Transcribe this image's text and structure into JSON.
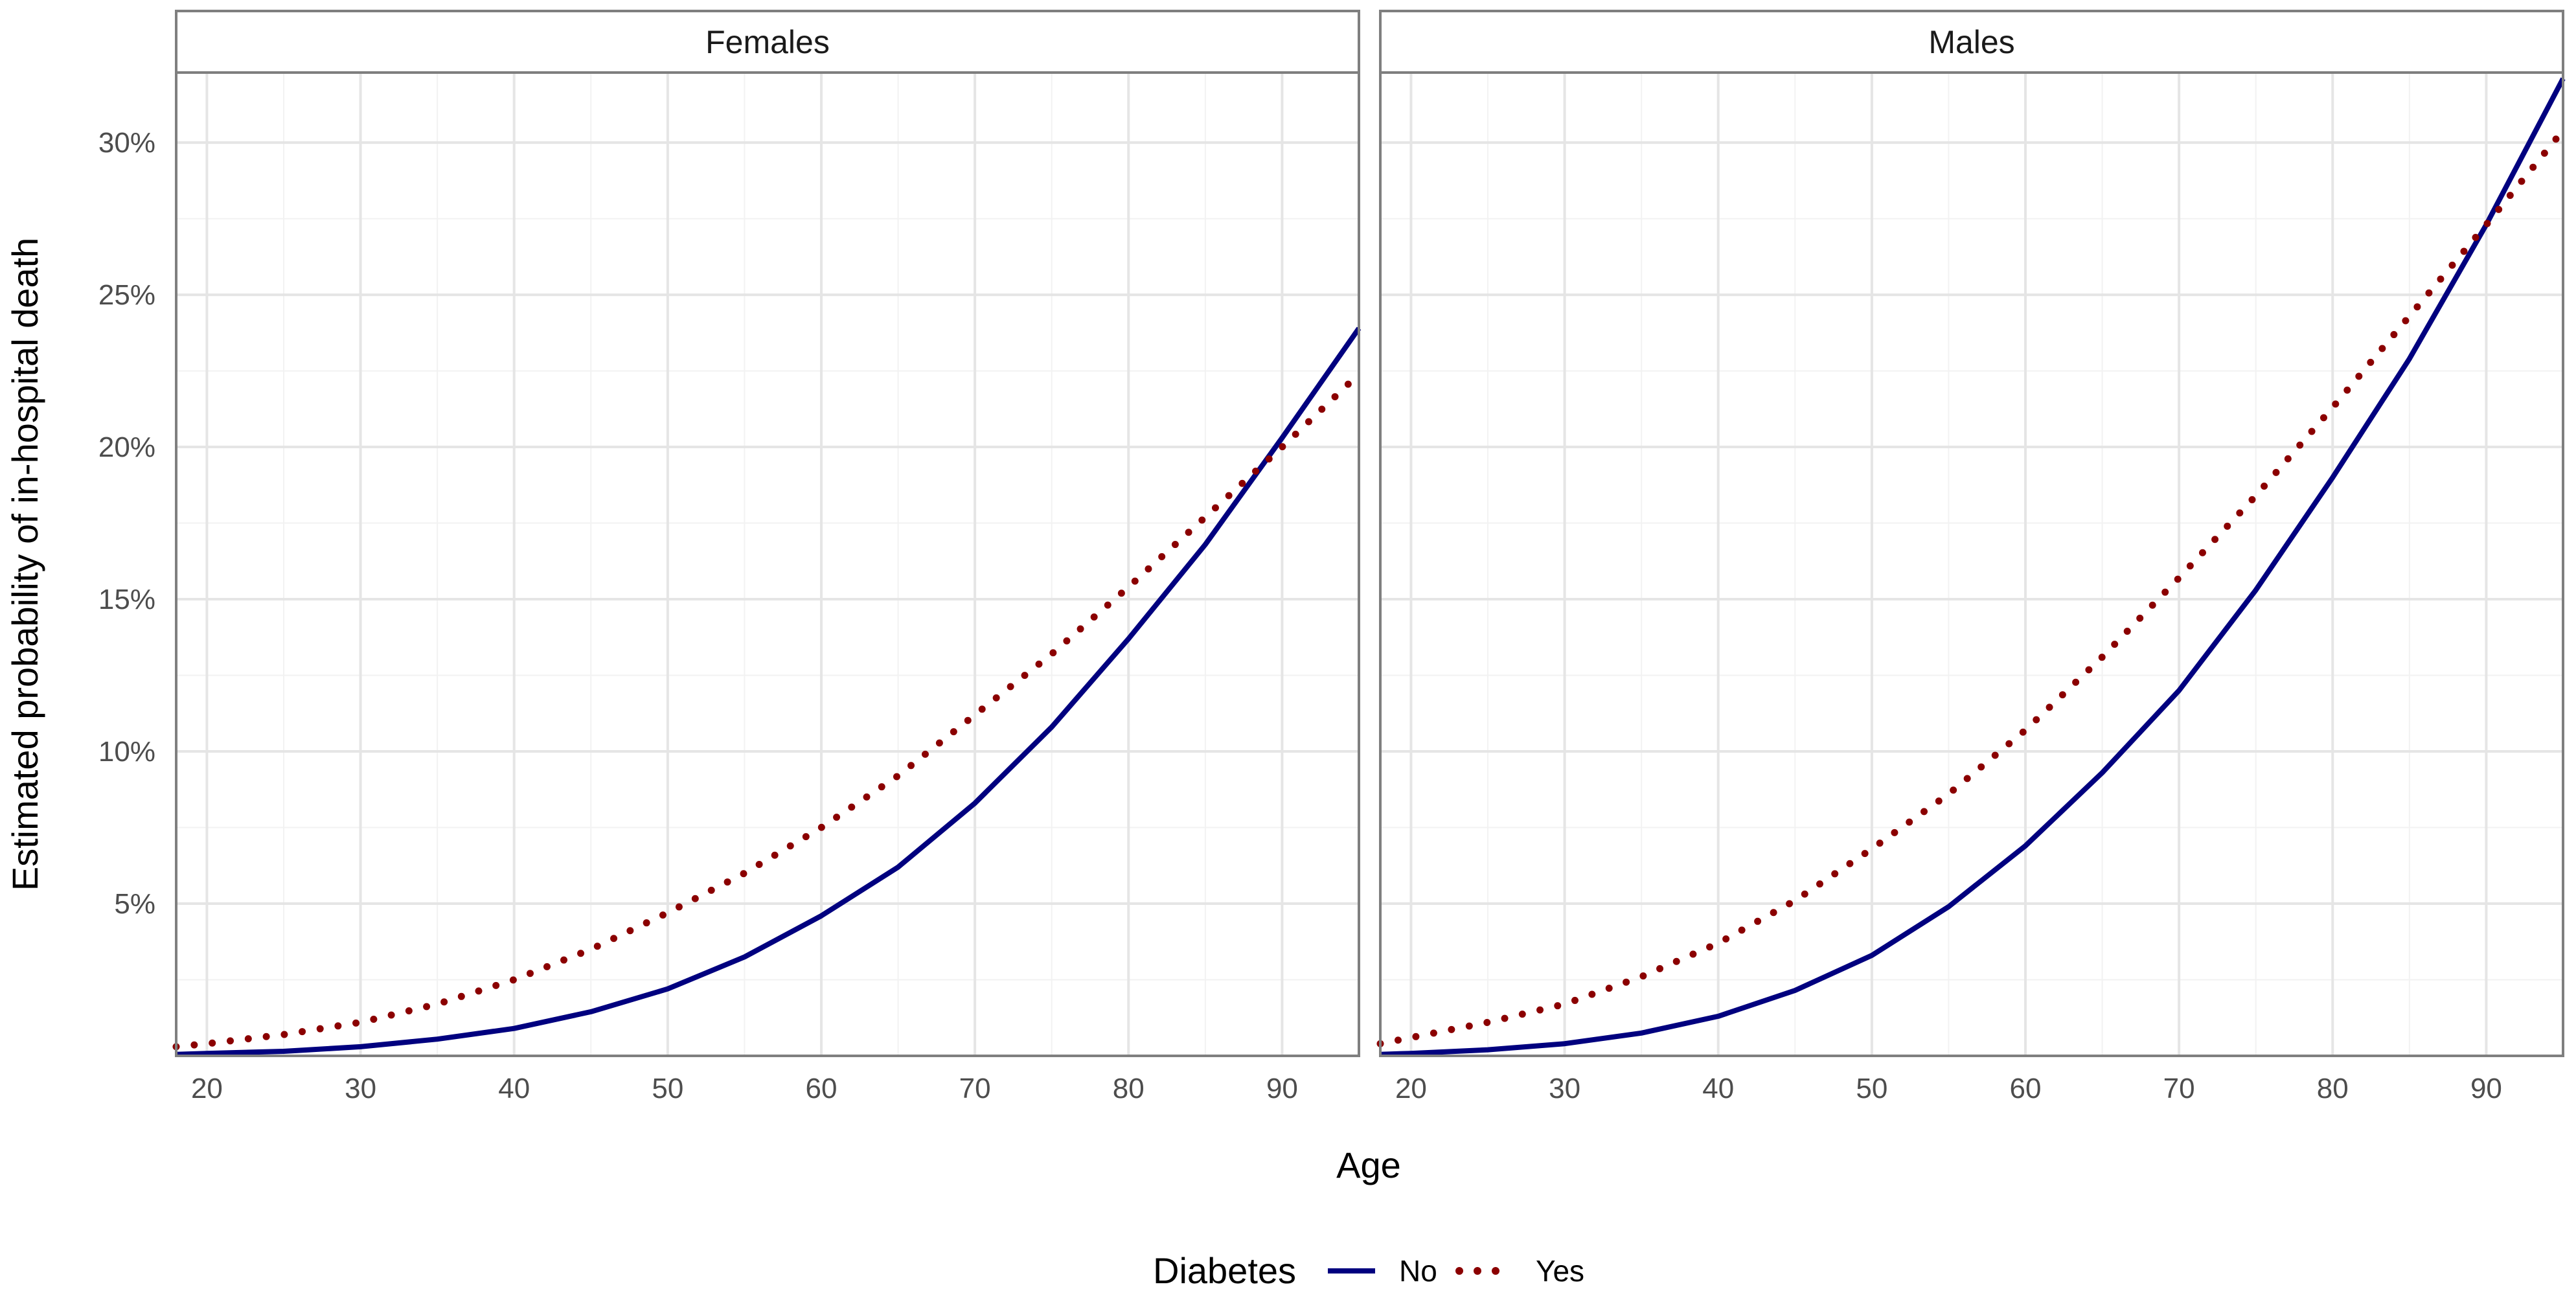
{
  "chart_data": {
    "type": "line",
    "xlabel": "Age",
    "ylabel": "Estimated probability of in-hospital death",
    "xlim": [
      18,
      95
    ],
    "ylim": [
      0,
      32.3
    ],
    "x_ticks": [
      20,
      30,
      40,
      50,
      60,
      70,
      80,
      90
    ],
    "x_tick_labels": [
      "20",
      "30",
      "40",
      "50",
      "60",
      "70",
      "80",
      "90"
    ],
    "y_ticks": [
      5,
      10,
      15,
      20,
      25,
      30
    ],
    "y_tick_labels": [
      "5%",
      "10%",
      "15%",
      "20%",
      "25%",
      "30%"
    ],
    "grid": true,
    "legend": {
      "title": "Diabetes",
      "position": "bottom",
      "entries": [
        {
          "label": "No",
          "color": "#00007F",
          "style": "solid"
        },
        {
          "label": "Yes",
          "color": "#8B0000",
          "style": "dotted"
        }
      ]
    },
    "panels": [
      {
        "title": "Females",
        "x": [
          18,
          20,
          25,
          30,
          35,
          40,
          45,
          50,
          55,
          60,
          65,
          70,
          75,
          80,
          85,
          90,
          95
        ],
        "series": [
          {
            "name": "No",
            "values": [
              0.05,
              0.08,
              0.15,
              0.3,
              0.55,
              0.9,
              1.45,
              2.2,
              3.25,
              4.6,
              6.2,
              8.3,
              10.8,
              13.7,
              16.8,
              20.3,
              23.9
            ]
          },
          {
            "name": "Yes",
            "values": [
              0.3,
              0.4,
              0.7,
              1.1,
              1.7,
              2.5,
              3.5,
              4.7,
              6.0,
              7.5,
              9.2,
              11.2,
              13.2,
              15.4,
              17.7,
              20.0,
              22.4
            ]
          }
        ]
      },
      {
        "title": "Males",
        "x": [
          18,
          20,
          25,
          30,
          35,
          40,
          45,
          50,
          55,
          60,
          65,
          70,
          75,
          80,
          85,
          90,
          95
        ],
        "series": [
          {
            "name": "No",
            "values": [
              0.05,
              0.08,
              0.2,
              0.4,
              0.75,
              1.3,
              2.15,
              3.3,
              4.9,
              6.9,
              9.3,
              12.0,
              15.3,
              19.0,
              22.9,
              27.3,
              32.1
            ]
          },
          {
            "name": "Yes",
            "values": [
              0.4,
              0.6,
              1.1,
              1.7,
              2.6,
              3.7,
              5.1,
              6.8,
              8.6,
              10.7,
              13.1,
              15.7,
              18.4,
              21.3,
              24.3,
              27.3,
              30.4
            ]
          }
        ]
      }
    ]
  }
}
